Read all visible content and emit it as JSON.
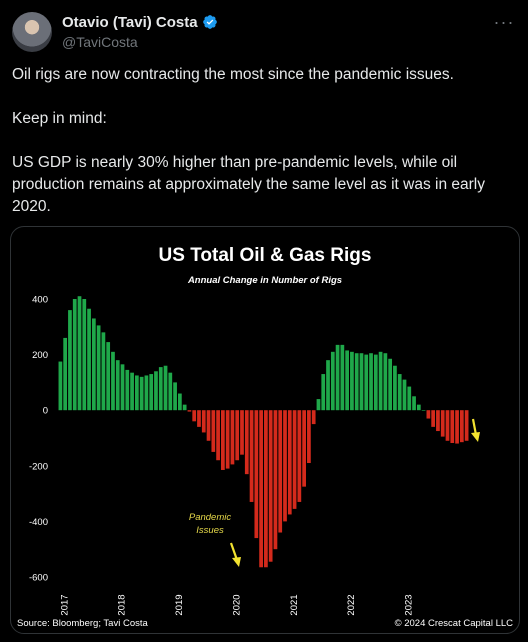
{
  "author": {
    "name": "Otavio (Tavi) Costa",
    "handle": "@TaviCosta",
    "verified": true,
    "verified_color": "#1d9bf0"
  },
  "menu": {
    "more_label": "···"
  },
  "tweet": {
    "paragraphs": [
      "Oil rigs are now contracting the most since the pandemic issues.",
      "Keep in mind:",
      "US GDP is nearly 30% higher than pre-pandemic levels, while oil production remains at approximately the same level as it was in early 2020."
    ]
  },
  "chart": {
    "source": "Source: Bloomberg; Tavi Costa",
    "copyright": "© 2024 Crescat Capital LLC",
    "annotation": [
      "Pandemic",
      "Issues"
    ],
    "colors": {
      "positive": "#1fa84a",
      "negative": "#d42a1c",
      "arrow": "#f2e230",
      "annotation": "#e6d94a"
    }
  },
  "chart_data": {
    "type": "bar",
    "title": "US Total Oil & Gas Rigs",
    "subtitle": "Annual Change in Number of Rigs",
    "xlabel": "",
    "ylabel": "",
    "ylim": [
      -600,
      400
    ],
    "yticks": [
      400,
      200,
      0,
      -200,
      -400,
      -600
    ],
    "xticks": [
      "2017",
      "2018",
      "2019",
      "2020",
      "2021",
      "2022",
      "2023"
    ],
    "start": "2017-01",
    "frequency": "monthly",
    "values": [
      175,
      260,
      360,
      400,
      410,
      400,
      365,
      330,
      305,
      280,
      245,
      210,
      180,
      165,
      145,
      135,
      125,
      120,
      125,
      130,
      140,
      155,
      160,
      135,
      100,
      60,
      20,
      -5,
      -40,
      -60,
      -80,
      -110,
      -150,
      -180,
      -215,
      -210,
      -195,
      -180,
      -160,
      -230,
      -330,
      -460,
      -565,
      -565,
      -545,
      -500,
      -440,
      -400,
      -375,
      -355,
      -330,
      -275,
      -190,
      -50,
      40,
      130,
      180,
      210,
      235,
      235,
      215,
      210,
      205,
      205,
      200,
      205,
      200,
      210,
      205,
      185,
      160,
      130,
      110,
      85,
      50,
      20,
      0,
      -30,
      -60,
      -75,
      -95,
      -110,
      -118,
      -120,
      -115,
      -110
    ]
  }
}
